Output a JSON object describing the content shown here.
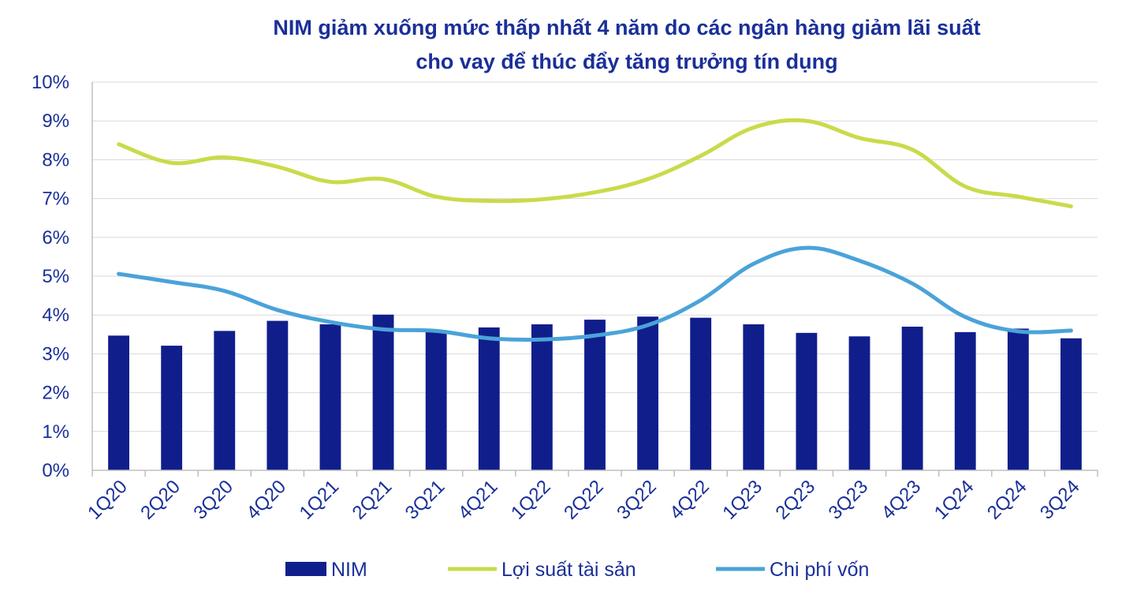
{
  "chart_data": {
    "type": "bar",
    "title_lines": [
      "NIM giảm xuống mức thấp nhất 4 năm do các ngân hàng giảm lãi suất",
      "cho vay để thúc đẩy tăng trưởng tín dụng"
    ],
    "categories": [
      "1Q20",
      "2Q20",
      "3Q20",
      "4Q20",
      "1Q21",
      "2Q21",
      "3Q21",
      "4Q21",
      "1Q22",
      "2Q22",
      "3Q22",
      "4Q22",
      "1Q23",
      "2Q23",
      "3Q23",
      "4Q23",
      "1Q24",
      "2Q24",
      "3Q24"
    ],
    "ylim": [
      0,
      10
    ],
    "yticks": [
      "0%",
      "1%",
      "2%",
      "3%",
      "4%",
      "5%",
      "6%",
      "7%",
      "8%",
      "9%",
      "10%"
    ],
    "grid": true,
    "legend_position": "bottom",
    "series": [
      {
        "name": "NIM",
        "type": "bar",
        "color": "#101e8c",
        "values": [
          3.47,
          3.21,
          3.59,
          3.85,
          3.76,
          4.01,
          3.61,
          3.68,
          3.76,
          3.88,
          3.96,
          3.93,
          3.76,
          3.54,
          3.45,
          3.7,
          3.56,
          3.65,
          3.4
        ]
      },
      {
        "name": "Lợi suất tài sản",
        "type": "line",
        "color": "#c9db4a",
        "values": [
          8.4,
          7.92,
          8.06,
          7.82,
          7.43,
          7.5,
          7.05,
          6.94,
          6.98,
          7.16,
          7.5,
          8.1,
          8.83,
          9.0,
          8.56,
          8.26,
          7.31,
          7.05,
          6.8
        ]
      },
      {
        "name": "Chi phí vốn",
        "type": "line",
        "color": "#4aa3d9",
        "values": [
          5.06,
          4.85,
          4.62,
          4.13,
          3.82,
          3.63,
          3.59,
          3.4,
          3.37,
          3.47,
          3.74,
          4.38,
          5.32,
          5.73,
          5.4,
          4.81,
          3.95,
          3.58,
          3.6
        ]
      }
    ]
  }
}
